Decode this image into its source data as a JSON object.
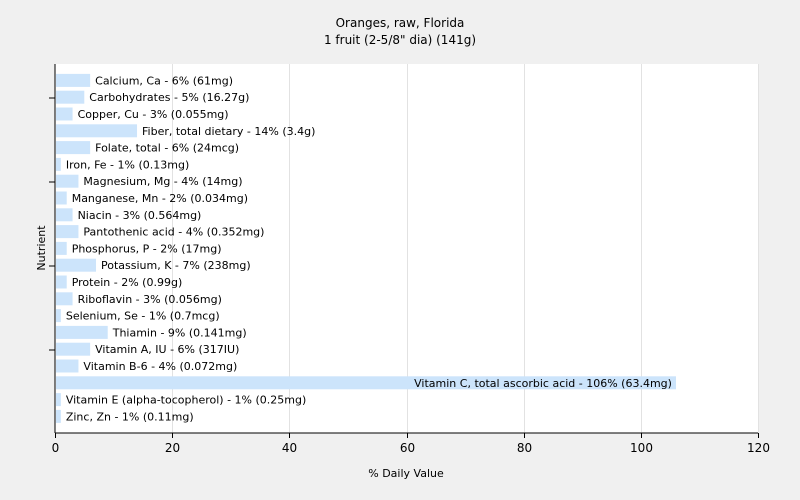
{
  "chart_data": {
    "type": "bar",
    "orientation": "horizontal",
    "title": "Oranges, raw, Florida",
    "subtitle": "1 fruit (2-5/8\" dia) (141g)",
    "xlabel": "% Daily Value",
    "ylabel": "Nutrient",
    "xlim": [
      0,
      120
    ],
    "xticks": [
      0,
      20,
      40,
      60,
      80,
      100,
      120
    ],
    "grid": "vertical",
    "legend": "none",
    "bar_color": "#cce4fb",
    "categories": [
      "Calcium, Ca",
      "Carbohydrates",
      "Copper, Cu",
      "Fiber, total dietary",
      "Folate, total",
      "Iron, Fe",
      "Magnesium, Mg",
      "Manganese, Mn",
      "Niacin",
      "Pantothenic acid",
      "Phosphorus, P",
      "Potassium, K",
      "Protein",
      "Riboflavin",
      "Selenium, Se",
      "Thiamin",
      "Vitamin A, IU",
      "Vitamin B-6",
      "Vitamin C, total ascorbic acid",
      "Vitamin E (alpha-tocopherol)",
      "Zinc, Zn"
    ],
    "values": [
      6,
      5,
      3,
      14,
      6,
      1,
      4,
      2,
      3,
      4,
      2,
      7,
      2,
      3,
      1,
      9,
      6,
      4,
      106,
      1,
      1
    ],
    "labels": [
      "Calcium, Ca - 6% (61mg)",
      "Carbohydrates - 5% (16.27g)",
      "Copper, Cu - 3% (0.055mg)",
      "Fiber, total dietary - 14% (3.4g)",
      "Folate, total - 6% (24mcg)",
      "Iron, Fe - 1% (0.13mg)",
      "Magnesium, Mg - 4% (14mg)",
      "Manganese, Mn - 2% (0.034mg)",
      "Niacin - 3% (0.564mg)",
      "Pantothenic acid - 4% (0.352mg)",
      "Phosphorus, P - 2% (17mg)",
      "Potassium, K - 7% (238mg)",
      "Protein - 2% (0.99g)",
      "Riboflavin - 3% (0.056mg)",
      "Selenium, Se - 1% (0.7mcg)",
      "Thiamin - 9% (0.141mg)",
      "Vitamin A, IU - 6% (317IU)",
      "Vitamin B-6 - 4% (0.072mg)",
      "Vitamin C, total ascorbic acid - 106% (63.4mg)",
      "Vitamin E (alpha-tocopherol) - 1% (0.25mg)",
      "Zinc, Zn - 1% (0.11mg)"
    ]
  }
}
